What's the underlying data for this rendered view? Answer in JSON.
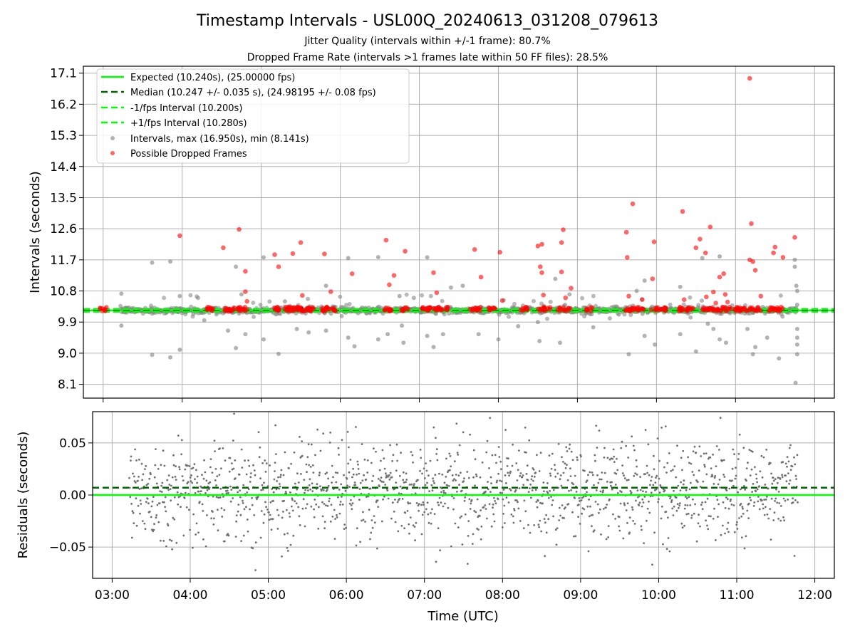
{
  "chart_data": [
    {
      "type": "scatter",
      "title": "Timestamp Intervals - USL00Q_20240613_031208_079613",
      "subtitles": [
        "Jitter Quality (intervals within +/-1 frame): 80.7%",
        "Dropped Frame Rate (intervals >1 frames late within 50 FF files): 28.5%"
      ],
      "ylabel": "Intervals (seconds)",
      "xlabel": "",
      "ylim": [
        7.7,
        17.3
      ],
      "xlim": [
        2.75,
        12.25
      ],
      "y_ticks": [
        8.1,
        9.0,
        9.9,
        10.8,
        11.7,
        12.6,
        13.5,
        14.4,
        15.3,
        16.2,
        17.1
      ],
      "y_tick_labels": [
        "8.1",
        "9.0",
        "9.9",
        "10.8",
        "11.7",
        "12.6",
        "13.5",
        "14.4",
        "15.3",
        "16.2",
        "17.1"
      ],
      "grid": true,
      "legend_position": "top-left",
      "reference_lines": [
        {
          "name": "Expected (10.240s), (25.00000 fps)",
          "y": 10.24,
          "color": "#00ff00",
          "style": "solid"
        },
        {
          "name": "Median (10.247 +/- 0.035 s), (24.98195 +/- 0.08 fps)",
          "y": 10.247,
          "color": "#006400",
          "style": "dashed"
        },
        {
          "name": "-1/fps Interval (10.200s)",
          "y": 10.2,
          "color": "#00ff00",
          "style": "dashed"
        },
        {
          "name": "+1/fps Interval (10.280s)",
          "y": 10.28,
          "color": "#00ff00",
          "style": "dashed"
        }
      ],
      "series": [
        {
          "name": "Intervals, max (16.950s), min (8.141s)",
          "color": "#808080",
          "baseline": 10.24,
          "x_range": [
            3.22,
            11.78
          ],
          "count": 1200,
          "outliers": [
            {
              "x": 3.23,
              "y": 10.72
            },
            {
              "x": 3.23,
              "y": 9.8
            },
            {
              "x": 3.62,
              "y": 11.62
            },
            {
              "x": 3.62,
              "y": 8.95
            },
            {
              "x": 3.85,
              "y": 11.65
            },
            {
              "x": 3.85,
              "y": 8.88
            },
            {
              "x": 3.97,
              "y": 10.65
            },
            {
              "x": 3.97,
              "y": 9.1
            },
            {
              "x": 4.2,
              "y": 10.6
            },
            {
              "x": 4.28,
              "y": 9.95
            },
            {
              "x": 4.58,
              "y": 9.65
            },
            {
              "x": 4.68,
              "y": 11.5
            },
            {
              "x": 4.68,
              "y": 9.15
            },
            {
              "x": 4.75,
              "y": 10.7
            },
            {
              "x": 4.8,
              "y": 9.55
            },
            {
              "x": 5.03,
              "y": 11.77
            },
            {
              "x": 5.03,
              "y": 9.4
            },
            {
              "x": 5.22,
              "y": 8.98
            },
            {
              "x": 5.3,
              "y": 10.5
            },
            {
              "x": 5.45,
              "y": 9.7
            },
            {
              "x": 5.6,
              "y": 9.6
            },
            {
              "x": 5.82,
              "y": 10.95
            },
            {
              "x": 5.82,
              "y": 9.65
            },
            {
              "x": 6.1,
              "y": 11.75
            },
            {
              "x": 6.1,
              "y": 9.45
            },
            {
              "x": 6.18,
              "y": 9.2
            },
            {
              "x": 6.48,
              "y": 11.78
            },
            {
              "x": 6.48,
              "y": 9.4
            },
            {
              "x": 6.6,
              "y": 9.55
            },
            {
              "x": 6.75,
              "y": 10.65
            },
            {
              "x": 6.78,
              "y": 9.8
            },
            {
              "x": 6.8,
              "y": 9.3
            },
            {
              "x": 6.93,
              "y": 10.6
            },
            {
              "x": 7.1,
              "y": 11.77
            },
            {
              "x": 7.1,
              "y": 9.5
            },
            {
              "x": 7.18,
              "y": 9.18
            },
            {
              "x": 7.3,
              "y": 9.55
            },
            {
              "x": 7.4,
              "y": 10.9
            },
            {
              "x": 7.55,
              "y": 10.95
            },
            {
              "x": 7.75,
              "y": 9.55
            },
            {
              "x": 8.0,
              "y": 9.4
            },
            {
              "x": 8.25,
              "y": 9.78
            },
            {
              "x": 8.5,
              "y": 9.9
            },
            {
              "x": 8.52,
              "y": 9.35
            },
            {
              "x": 8.72,
              "y": 11.15
            },
            {
              "x": 8.78,
              "y": 9.3
            },
            {
              "x": 8.9,
              "y": 10.7
            },
            {
              "x": 9.2,
              "y": 9.75
            },
            {
              "x": 9.65,
              "y": 8.97
            },
            {
              "x": 9.75,
              "y": 10.8
            },
            {
              "x": 9.85,
              "y": 11.1
            },
            {
              "x": 9.85,
              "y": 9.5
            },
            {
              "x": 9.98,
              "y": 9.25
            },
            {
              "x": 10.3,
              "y": 10.92
            },
            {
              "x": 10.3,
              "y": 9.55
            },
            {
              "x": 10.5,
              "y": 9.05
            },
            {
              "x": 10.58,
              "y": 11.75
            },
            {
              "x": 10.65,
              "y": 9.85
            },
            {
              "x": 10.72,
              "y": 9.7
            },
            {
              "x": 10.8,
              "y": 11.8
            },
            {
              "x": 10.8,
              "y": 9.4
            },
            {
              "x": 10.88,
              "y": 9.3
            },
            {
              "x": 11.15,
              "y": 9.7
            },
            {
              "x": 11.22,
              "y": 8.97
            },
            {
              "x": 11.25,
              "y": 9.18
            },
            {
              "x": 11.4,
              "y": 9.45
            },
            {
              "x": 11.55,
              "y": 8.85
            },
            {
              "x": 11.75,
              "y": 11.7
            },
            {
              "x": 11.75,
              "y": 11.5
            },
            {
              "x": 11.77,
              "y": 10.95
            },
            {
              "x": 11.78,
              "y": 10.4
            },
            {
              "x": 11.78,
              "y": 10.8
            },
            {
              "x": 11.78,
              "y": 9.7
            },
            {
              "x": 11.78,
              "y": 9.45
            },
            {
              "x": 11.78,
              "y": 9.25
            },
            {
              "x": 11.78,
              "y": 8.97
            },
            {
              "x": 11.76,
              "y": 8.14
            }
          ]
        },
        {
          "name": "Possible Dropped Frames",
          "color": "#ff0000",
          "points": [
            {
              "x": 3.97,
              "y": 12.4
            },
            {
              "x": 4.52,
              "y": 12.05
            },
            {
              "x": 4.72,
              "y": 12.58
            },
            {
              "x": 4.8,
              "y": 11.37
            },
            {
              "x": 4.8,
              "y": 10.78
            },
            {
              "x": 4.82,
              "y": 10.5
            },
            {
              "x": 5.17,
              "y": 11.85
            },
            {
              "x": 5.22,
              "y": 11.5
            },
            {
              "x": 5.4,
              "y": 11.88
            },
            {
              "x": 5.5,
              "y": 12.2
            },
            {
              "x": 5.52,
              "y": 10.67
            },
            {
              "x": 5.8,
              "y": 11.87
            },
            {
              "x": 5.88,
              "y": 10.78
            },
            {
              "x": 6.15,
              "y": 11.3
            },
            {
              "x": 6.58,
              "y": 12.27
            },
            {
              "x": 6.62,
              "y": 10.98
            },
            {
              "x": 6.68,
              "y": 11.25
            },
            {
              "x": 6.82,
              "y": 11.95
            },
            {
              "x": 7.18,
              "y": 11.33
            },
            {
              "x": 7.22,
              "y": 10.75
            },
            {
              "x": 7.7,
              "y": 12.0
            },
            {
              "x": 7.78,
              "y": 11.2
            },
            {
              "x": 8.02,
              "y": 11.92
            },
            {
              "x": 8.05,
              "y": 10.52
            },
            {
              "x": 8.5,
              "y": 12.1
            },
            {
              "x": 8.55,
              "y": 12.15
            },
            {
              "x": 8.53,
              "y": 11.5
            },
            {
              "x": 8.55,
              "y": 11.33
            },
            {
              "x": 8.57,
              "y": 10.68
            },
            {
              "x": 8.8,
              "y": 12.2
            },
            {
              "x": 8.82,
              "y": 12.57
            },
            {
              "x": 8.8,
              "y": 11.35
            },
            {
              "x": 8.85,
              "y": 10.6
            },
            {
              "x": 8.92,
              "y": 10.88
            },
            {
              "x": 9.62,
              "y": 12.5
            },
            {
              "x": 9.63,
              "y": 11.77
            },
            {
              "x": 9.65,
              "y": 10.65
            },
            {
              "x": 9.7,
              "y": 13.32
            },
            {
              "x": 9.82,
              "y": 10.55
            },
            {
              "x": 9.95,
              "y": 11.15
            },
            {
              "x": 9.97,
              "y": 12.22
            },
            {
              "x": 10.33,
              "y": 13.1
            },
            {
              "x": 10.35,
              "y": 10.55
            },
            {
              "x": 10.5,
              "y": 12.05
            },
            {
              "x": 10.55,
              "y": 12.3
            },
            {
              "x": 10.62,
              "y": 11.9
            },
            {
              "x": 10.63,
              "y": 10.63
            },
            {
              "x": 10.68,
              "y": 12.65
            },
            {
              "x": 10.72,
              "y": 10.77
            },
            {
              "x": 10.75,
              "y": 10.45
            },
            {
              "x": 10.8,
              "y": 11.2
            },
            {
              "x": 10.85,
              "y": 11.3
            },
            {
              "x": 10.87,
              "y": 10.7
            },
            {
              "x": 10.9,
              "y": 10.48
            },
            {
              "x": 11.18,
              "y": 16.95
            },
            {
              "x": 11.2,
              "y": 12.75
            },
            {
              "x": 11.18,
              "y": 11.7
            },
            {
              "x": 11.22,
              "y": 11.65
            },
            {
              "x": 11.25,
              "y": 11.4
            },
            {
              "x": 11.32,
              "y": 10.65
            },
            {
              "x": 11.48,
              "y": 11.9
            },
            {
              "x": 11.5,
              "y": 12.07
            },
            {
              "x": 11.6,
              "y": 11.77
            },
            {
              "x": 11.75,
              "y": 12.35
            }
          ],
          "cluster_centers": [
            3.0,
            4.35,
            4.57,
            4.62,
            4.7,
            4.78,
            5.2,
            5.33,
            5.42,
            5.48,
            5.55,
            5.62,
            5.8,
            5.9,
            6.6,
            6.82,
            7.08,
            7.15,
            7.22,
            7.32,
            7.68,
            7.75,
            7.92,
            8.32,
            8.55,
            8.62,
            8.78,
            8.88,
            9.15,
            9.65,
            9.72,
            9.8,
            9.98,
            10.08,
            10.32,
            10.42,
            10.62,
            10.7,
            10.8,
            10.9,
            11.02,
            11.1,
            11.18,
            11.28,
            11.45,
            11.55
          ]
        }
      ]
    },
    {
      "type": "scatter",
      "title": "",
      "xlabel": "Time (UTC)",
      "ylabel": "Residuals (seconds)",
      "ylim": [
        -0.08,
        0.08
      ],
      "xlim": [
        2.75,
        12.25
      ],
      "y_ticks": [
        -0.05,
        0.0,
        0.05
      ],
      "y_tick_labels": [
        "−0.05",
        "0.00",
        "0.05"
      ],
      "x_ticks": [
        3,
        4,
        5,
        6,
        7,
        8,
        9,
        10,
        11,
        12
      ],
      "x_tick_labels": [
        "03:00",
        "04:00",
        "05:00",
        "06:00",
        "07:00",
        "08:00",
        "09:00",
        "10:00",
        "11:00",
        "12:00"
      ],
      "grid": true,
      "reference_lines": [
        {
          "y": 0.0,
          "color": "#00ff00",
          "style": "solid"
        },
        {
          "y": 0.007,
          "color": "#006400",
          "style": "dashed"
        }
      ],
      "series": [
        {
          "color": "#707070",
          "x_range": [
            3.22,
            11.78
          ],
          "count": 1500,
          "spread": 0.024,
          "mean": 0.005
        }
      ]
    }
  ]
}
